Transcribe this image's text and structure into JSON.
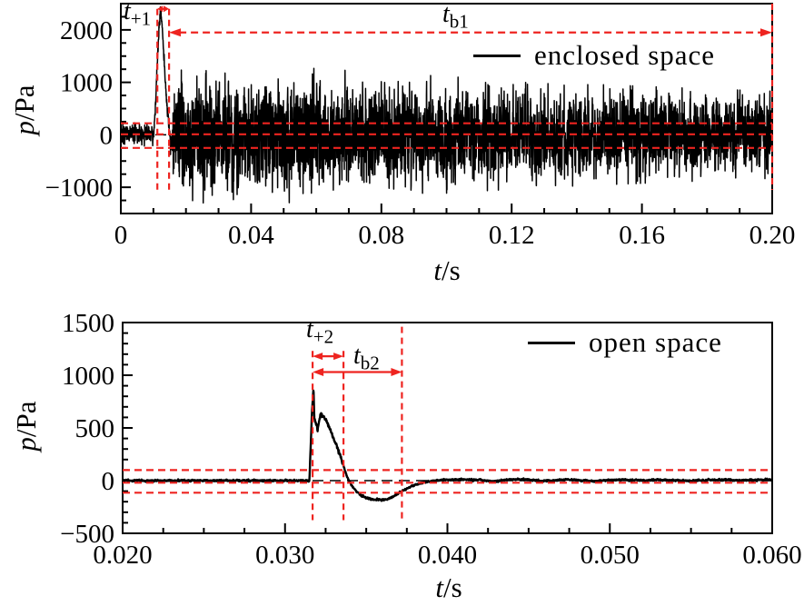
{
  "colors": {
    "signal": "#000000",
    "annotation": "#ee2420",
    "background": "#ffffff",
    "text": "#000000"
  },
  "chart_data": [
    {
      "type": "line",
      "title": "",
      "xlabel": {
        "italic": "t",
        "rest": "/s"
      },
      "ylabel": {
        "italic": "p",
        "rest": "/Pa"
      },
      "xlim": [
        0,
        0.2
      ],
      "ylim": [
        -1500,
        2500
      ],
      "xticks": [
        0,
        0.04,
        0.08,
        0.12,
        0.16,
        0.2
      ],
      "xtick_labels": [
        "0",
        "0.04",
        "0.08",
        "0.12",
        "0.16",
        "0.20"
      ],
      "x_minor_step": 0.01,
      "yticks": [
        -1000,
        0,
        1000,
        2000
      ],
      "ytick_labels": [
        "−1000",
        "0",
        "1000",
        "2000"
      ],
      "y_minor_step": 250,
      "grid": false,
      "legend": {
        "label": "enclosed space",
        "position": "top-right"
      },
      "series": [
        {
          "name": "enclosed space",
          "color": "#000000",
          "description": "pressure-time history in enclosed space: ambient noise until 0.0095 s, main blast peak ~2450 Pa at 0.0122 s, then dense reverberant noise slowly decaying from ±1300 Pa to ±830 Pa",
          "quiet_noise_amp_pa": 230,
          "pulse": [
            [
              0.01,
              60
            ],
            [
              0.0104,
              300
            ],
            [
              0.0108,
              800
            ],
            [
              0.0112,
              1400
            ],
            [
              0.0117,
              2000
            ],
            [
              0.0122,
              2450
            ],
            [
              0.0128,
              1950
            ],
            [
              0.0134,
              1300
            ],
            [
              0.0141,
              650
            ],
            [
              0.0148,
              150
            ],
            [
              0.0153,
              -200
            ],
            [
              0.0158,
              0
            ]
          ],
          "noise_envelope": [
            [
              0,
              230
            ],
            [
              0.0095,
              230
            ],
            [
              0.0158,
              1150
            ],
            [
              0.02,
              1300
            ],
            [
              0.05,
              1300
            ],
            [
              0.09,
              1150
            ],
            [
              0.13,
              1000
            ],
            [
              0.17,
              900
            ],
            [
              0.2,
              830
            ]
          ]
        }
      ],
      "annotations": {
        "t_plus": {
          "base": "t",
          "sub": "+1",
          "t_start": 0.0112,
          "t_end": 0.0148,
          "arrow_p": 2400,
          "shaft": "solid"
        },
        "t_b": {
          "base": "t",
          "sub": "b1",
          "t_start": 0.0148,
          "t_end": 0.2,
          "arrow_p": 1950,
          "shaft": "dashed"
        },
        "marker_lines": [
          {
            "t": 0.0112,
            "p_top": 2400,
            "p_bot": -1100
          },
          {
            "t": 0.0148,
            "p_top": 2400,
            "p_bot": -1100
          },
          {
            "t": 0.2,
            "p_top": 2500,
            "p_bot": -1050
          }
        ],
        "h_guides_pa": [
          220,
          10,
          -250
        ],
        "zero_line_pa": 0
      }
    },
    {
      "type": "line",
      "title": "",
      "xlabel": {
        "italic": "t",
        "rest": "/s"
      },
      "ylabel": {
        "italic": "p",
        "rest": "/Pa"
      },
      "xlim": [
        0.02,
        0.06
      ],
      "ylim": [
        -500,
        1500
      ],
      "xticks": [
        0.02,
        0.03,
        0.04,
        0.05,
        0.06
      ],
      "xtick_labels": [
        "0.020",
        "0.030",
        "0.040",
        "0.050",
        "0.060"
      ],
      "x_minor_step": 0.0025,
      "yticks": [
        -500,
        0,
        500,
        1000,
        1500
      ],
      "ytick_labels": [
        "−500",
        "0",
        "500",
        "1000",
        "1500"
      ],
      "y_minor_step": 100,
      "grid": false,
      "legend": {
        "label": "open space",
        "position": "top-right"
      },
      "series": [
        {
          "name": "open space",
          "color": "#000000",
          "description": "pressure-time history in open space: flat baseline, blast pulse peaking ~870 Pa at 0.0318 s, negative phase to ~-182 Pa, recovery to baseline by 0.040 s",
          "noise_amp_pa": 9,
          "peak": {
            "t": 0.0318,
            "p": 870
          },
          "negative_min": {
            "t": 0.036,
            "p": -182
          },
          "waveform": [
            [
              0.02,
              0
            ],
            [
              0.0315,
              0
            ],
            [
              0.03165,
              620
            ],
            [
              0.03175,
              870
            ],
            [
              0.0318,
              610
            ],
            [
              0.032,
              490
            ],
            [
              0.0322,
              640
            ],
            [
              0.0325,
              590
            ],
            [
              0.0328,
              470
            ],
            [
              0.0331,
              360
            ],
            [
              0.0334,
              240
            ],
            [
              0.0337,
              90
            ],
            [
              0.0339,
              10
            ],
            [
              0.0342,
              -70
            ],
            [
              0.0346,
              -130
            ],
            [
              0.035,
              -165
            ],
            [
              0.0355,
              -180
            ],
            [
              0.036,
              -182
            ],
            [
              0.0364,
              -172
            ],
            [
              0.0368,
              -140
            ],
            [
              0.0372,
              -100
            ],
            [
              0.0376,
              -70
            ],
            [
              0.038,
              -40
            ],
            [
              0.0385,
              -20
            ],
            [
              0.039,
              -5
            ],
            [
              0.0395,
              5
            ],
            [
              0.04,
              8
            ],
            [
              0.041,
              10
            ],
            [
              0.042,
              5
            ],
            [
              0.0428,
              -8
            ],
            [
              0.0435,
              5
            ],
            [
              0.0443,
              12
            ],
            [
              0.045,
              8
            ],
            [
              0.0458,
              -5
            ],
            [
              0.0465,
              3
            ],
            [
              0.0475,
              10
            ],
            [
              0.0483,
              2
            ],
            [
              0.049,
              -5
            ],
            [
              0.05,
              5
            ],
            [
              0.051,
              8
            ],
            [
              0.052,
              0
            ],
            [
              0.053,
              8
            ],
            [
              0.054,
              3
            ],
            [
              0.055,
              -3
            ],
            [
              0.056,
              6
            ],
            [
              0.057,
              8
            ],
            [
              0.058,
              2
            ],
            [
              0.059,
              6
            ],
            [
              0.06,
              10
            ]
          ]
        }
      ],
      "annotations": {
        "t_plus": {
          "base": "t",
          "sub": "+2",
          "t_start": 0.0317,
          "t_end": 0.0336,
          "arrow_p": 1180,
          "shaft": "solid"
        },
        "t_b": {
          "base": "t",
          "sub": "b2",
          "t_start": 0.0317,
          "t_end": 0.0372,
          "arrow_p": 1030,
          "shaft": "solid"
        },
        "marker_lines": [
          {
            "t": 0.0317,
            "p_top": 1230,
            "p_bot": -375
          },
          {
            "t": 0.0336,
            "p_top": 1230,
            "p_bot": -375
          },
          {
            "t": 0.0372,
            "p_top": 1460,
            "p_bot": -375
          }
        ],
        "h_guides_pa": [
          100,
          -20,
          -115
        ],
        "zero_line_pa": 0
      }
    }
  ]
}
